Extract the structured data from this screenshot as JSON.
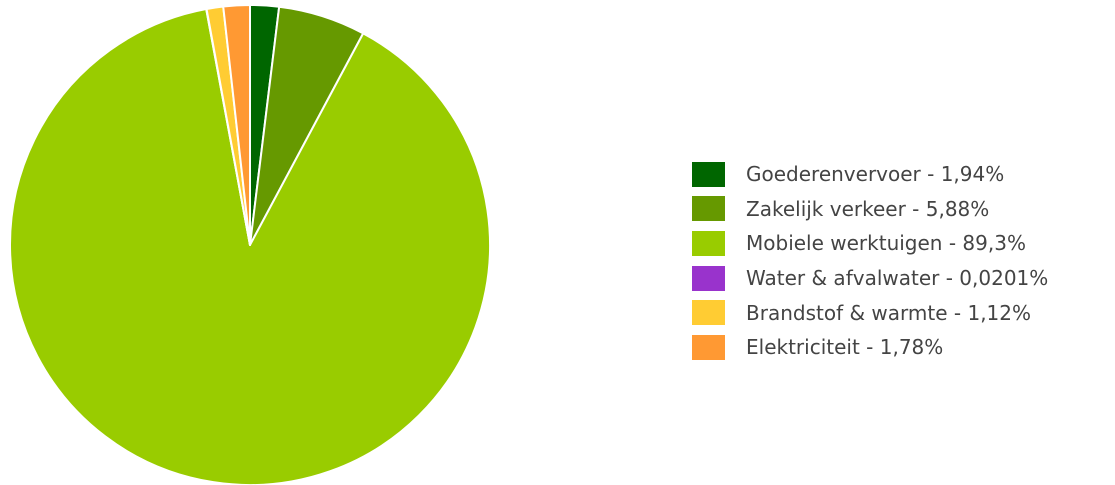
{
  "chart_data": {
    "type": "pie",
    "title": "",
    "start_angle_deg": 0,
    "direction": "clockwise",
    "slices": [
      {
        "label": "Goederenvervoer - 1,94%",
        "value": 1.94,
        "color": "#006600"
      },
      {
        "label": "Zakelijk verkeer - 5,88%",
        "value": 5.88,
        "color": "#669900"
      },
      {
        "label": "Mobiele werktuigen - 89,3%",
        "value": 89.3,
        "color": "#99cc00"
      },
      {
        "label": "Water & afvalwater - 0,0201%",
        "value": 0.0201,
        "color": "#9933cc"
      },
      {
        "label": "Brandstof & warmte - 1,12%",
        "value": 1.12,
        "color": "#ffcc33"
      },
      {
        "label": "Elektriciteit - 1,78%",
        "value": 1.78,
        "color": "#ff9933"
      }
    ],
    "legend_position": "right"
  }
}
